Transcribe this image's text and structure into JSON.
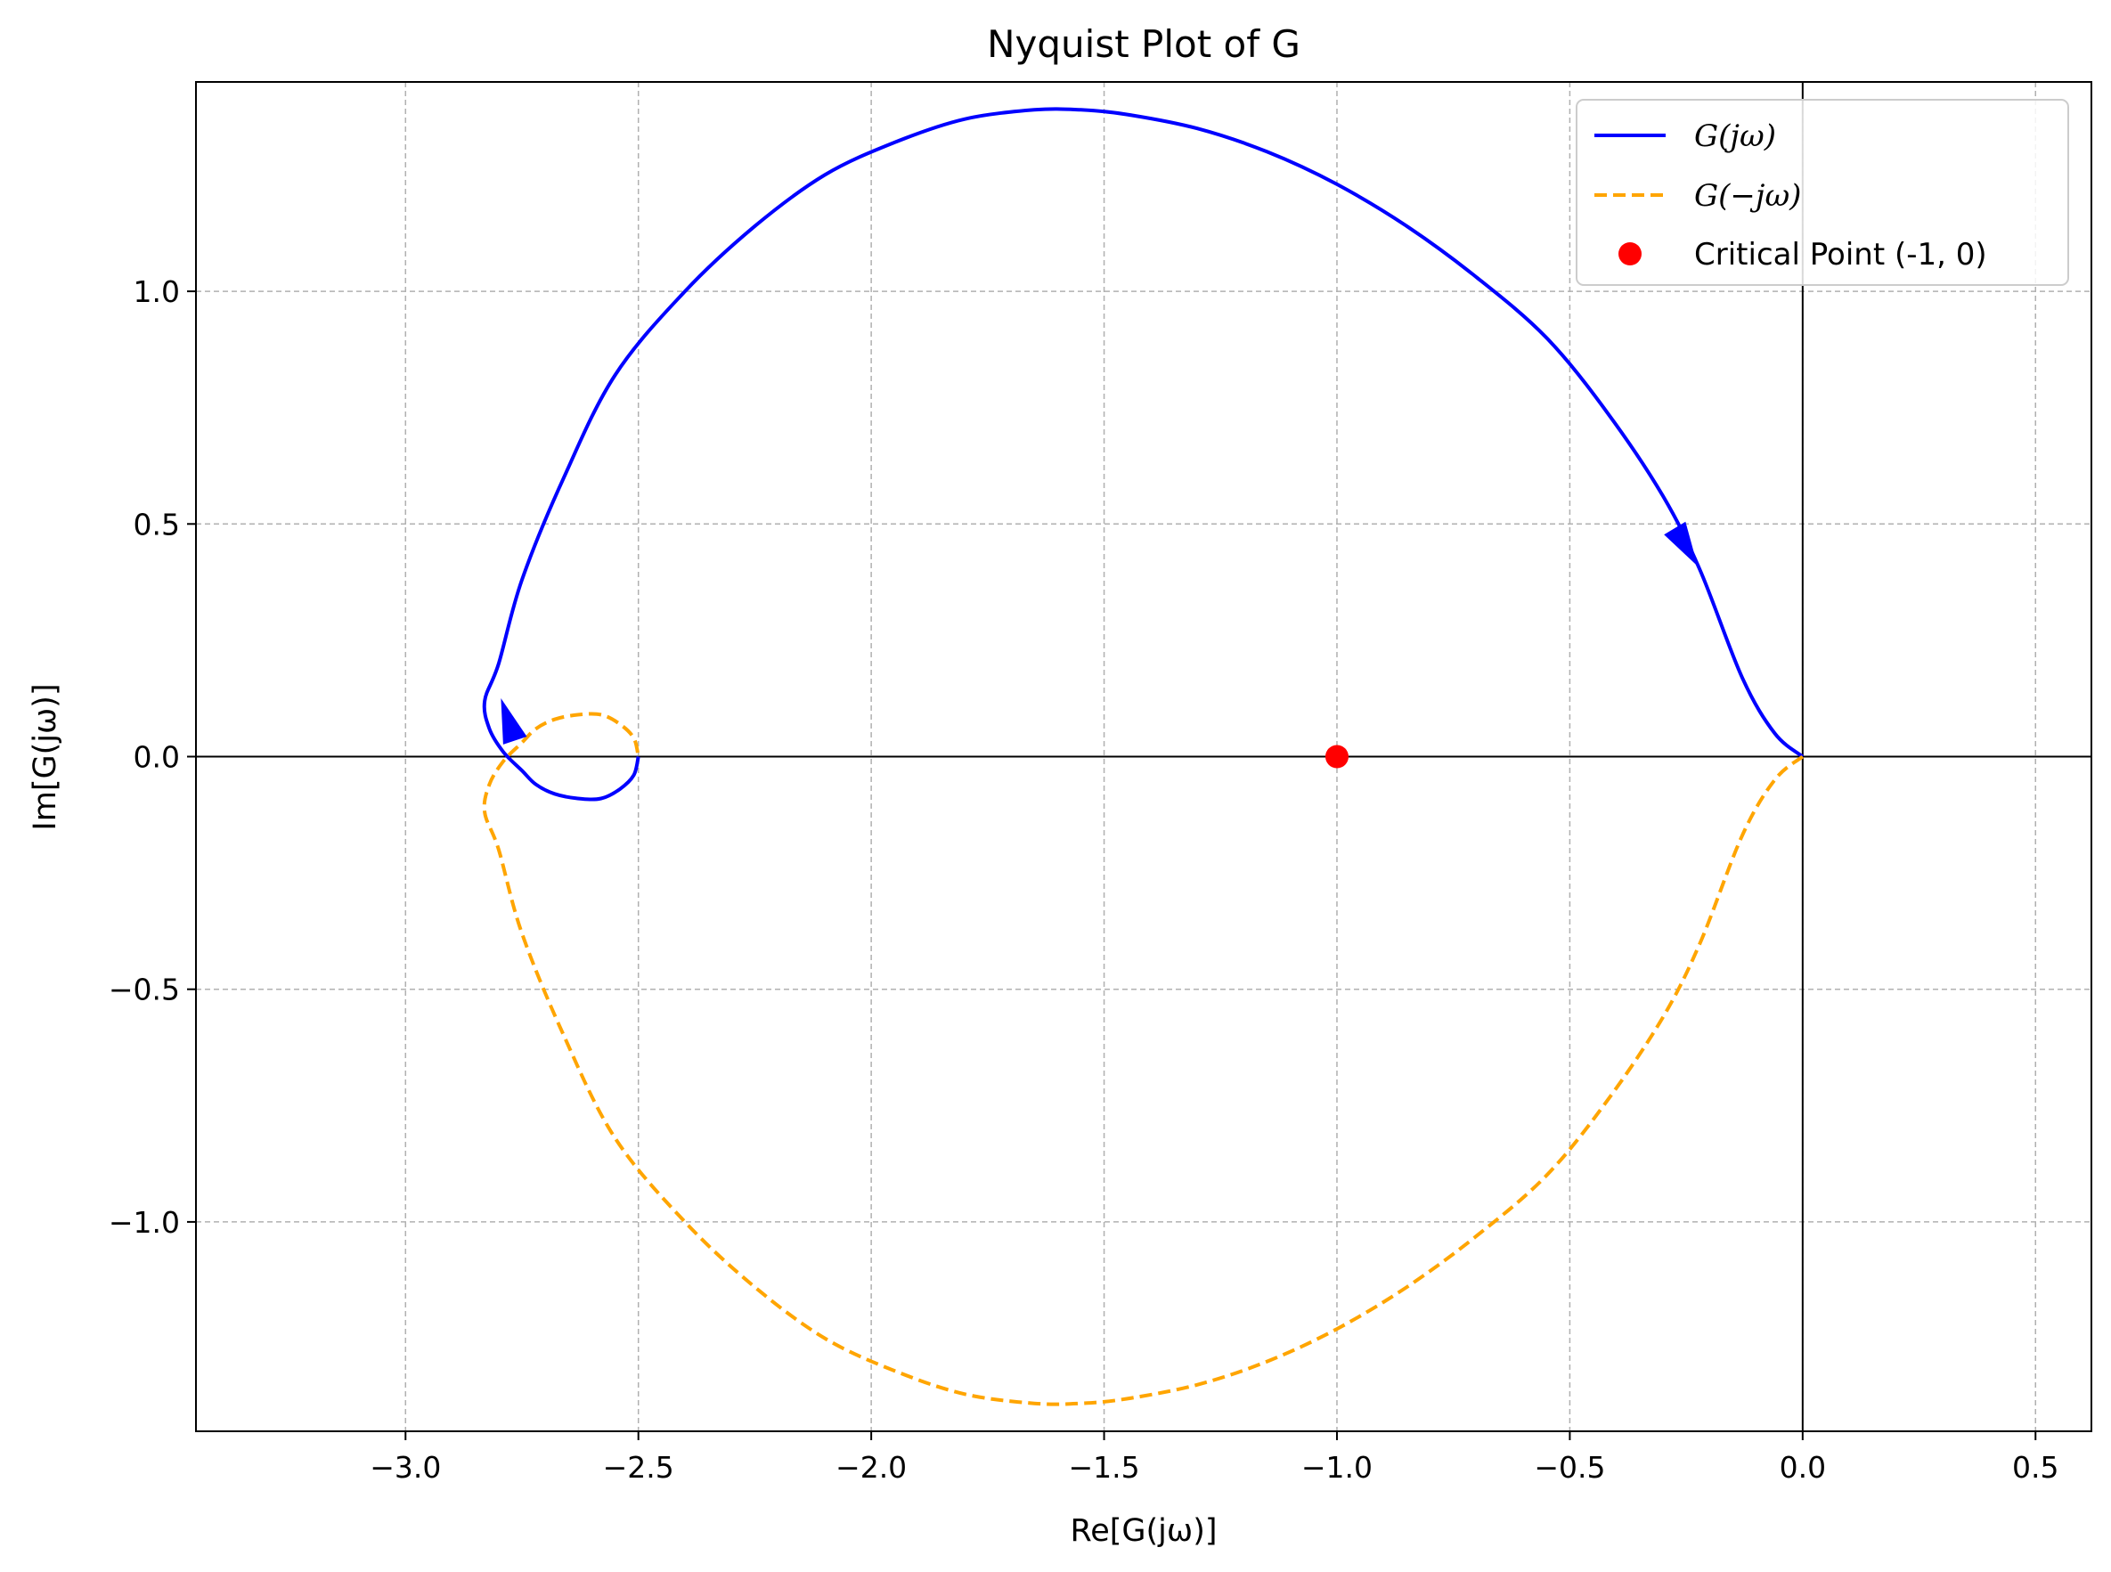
{
  "chart_data": {
    "type": "line",
    "title": "Nyquist Plot of G",
    "xlabel": "Re[G(jω)]",
    "ylabel": "Im[G(jω)]",
    "xlim": [
      -3.45,
      0.62
    ],
    "ylim": [
      -1.45,
      1.45
    ],
    "xticks": [
      -3.0,
      -2.5,
      -2.0,
      -1.5,
      -1.0,
      -0.5,
      0.0,
      0.5
    ],
    "xtick_labels": [
      "−3.0",
      "−2.5",
      "−2.0",
      "−1.5",
      "−1.0",
      "−0.5",
      "0.0",
      "0.5"
    ],
    "yticks": [
      -1.0,
      -0.5,
      0.0,
      0.5,
      1.0
    ],
    "ytick_labels": [
      "−1.0",
      "−0.5",
      "0.0",
      "0.5",
      "1.0"
    ],
    "grid": true,
    "legend_position": "top-right",
    "series": [
      {
        "name": "G(jω)",
        "color": "#0000ff",
        "style": "solid",
        "x": [
          0.0,
          -0.06,
          -0.13,
          -0.22,
          -0.3,
          -0.42,
          -0.55,
          -0.7,
          -0.85,
          -1.0,
          -1.15,
          -1.3,
          -1.45,
          -1.55,
          -1.65,
          -1.8,
          -1.95,
          -2.1,
          -2.25,
          -2.4,
          -2.55,
          -2.66,
          -2.75,
          -2.8,
          -2.83,
          -2.82,
          -2.79,
          -2.75,
          -2.72,
          -2.68,
          -2.63,
          -2.58,
          -2.54,
          -2.51,
          -2.5
        ],
        "y": [
          0.0,
          0.05,
          0.17,
          0.4,
          0.56,
          0.74,
          0.9,
          1.03,
          1.14,
          1.23,
          1.3,
          1.35,
          1.38,
          1.39,
          1.39,
          1.37,
          1.32,
          1.25,
          1.14,
          1.0,
          0.82,
          0.6,
          0.38,
          0.2,
          0.12,
          0.06,
          0.01,
          -0.03,
          -0.06,
          -0.08,
          -0.09,
          -0.09,
          -0.07,
          -0.04,
          0.0
        ]
      },
      {
        "name": "G(−jω)",
        "color": "#ffa500",
        "style": "dashed",
        "x": [
          0.0,
          -0.06,
          -0.13,
          -0.22,
          -0.3,
          -0.42,
          -0.55,
          -0.7,
          -0.85,
          -1.0,
          -1.15,
          -1.3,
          -1.45,
          -1.55,
          -1.65,
          -1.8,
          -1.95,
          -2.1,
          -2.25,
          -2.4,
          -2.55,
          -2.66,
          -2.75,
          -2.8,
          -2.83,
          -2.82,
          -2.79,
          -2.75,
          -2.72,
          -2.68,
          -2.63,
          -2.58,
          -2.54,
          -2.51,
          -2.5
        ],
        "y": [
          0.0,
          -0.05,
          -0.17,
          -0.4,
          -0.56,
          -0.74,
          -0.9,
          -1.03,
          -1.14,
          -1.23,
          -1.3,
          -1.35,
          -1.38,
          -1.39,
          -1.39,
          -1.37,
          -1.32,
          -1.25,
          -1.14,
          -1.0,
          -0.82,
          -0.6,
          -0.38,
          -0.2,
          -0.12,
          -0.06,
          -0.01,
          0.03,
          0.06,
          0.08,
          0.09,
          0.09,
          0.07,
          0.04,
          0.0
        ]
      },
      {
        "name": "Critical Point (-1, 0)",
        "color": "#ff0000",
        "style": "marker",
        "x": [
          -1.0
        ],
        "y": [
          0.0
        ]
      }
    ],
    "arrows": [
      {
        "series": "G(jω)",
        "x": -0.25,
        "y": 0.45,
        "toward_x": -0.22,
        "toward_y": 0.4
      },
      {
        "series": "G(jω)",
        "x": -2.78,
        "y": 0.08,
        "toward_x": -2.81,
        "toward_y": 0.17
      }
    ]
  }
}
